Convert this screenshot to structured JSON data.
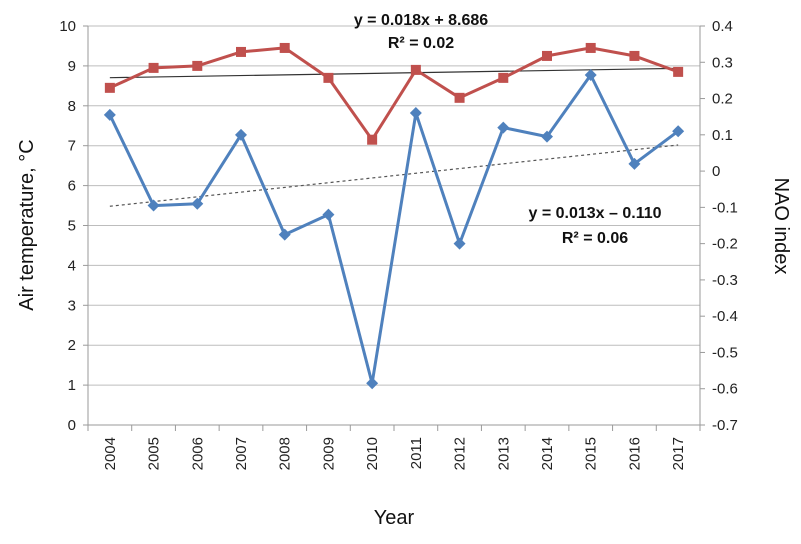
{
  "chart_data": {
    "type": "line",
    "categories": [
      "2004",
      "2005",
      "2006",
      "2007",
      "2008",
      "2009",
      "2010",
      "2011",
      "2012",
      "2013",
      "2014",
      "2015",
      "2016",
      "2017"
    ],
    "series": [
      {
        "name": "Air temperature",
        "axis": "left",
        "color": "#c0504d",
        "marker": "square",
        "values": [
          8.45,
          8.95,
          9.0,
          9.35,
          9.45,
          8.7,
          7.15,
          8.9,
          8.2,
          8.7,
          9.25,
          9.45,
          9.25,
          8.85
        ]
      },
      {
        "name": "NAO index",
        "axis": "right",
        "color": "#4f81bd",
        "marker": "diamond",
        "values": [
          0.155,
          -0.095,
          -0.09,
          0.1,
          -0.175,
          -0.12,
          -0.585,
          0.16,
          -0.2,
          0.12,
          0.095,
          0.265,
          0.02,
          0.11
        ]
      }
    ],
    "trendlines": [
      {
        "series": "Air temperature",
        "axis": "left",
        "style": "solid",
        "color": "#333333",
        "start_value": 8.704,
        "end_value": 8.938,
        "equation": "y = 0.018x + 8.686",
        "r2": "R² = 0.02"
      },
      {
        "series": "NAO index",
        "axis": "right",
        "style": "dashed",
        "color": "#555555",
        "start_value": -0.097,
        "end_value": 0.072,
        "equation": "y = 0.013x – 0.110",
        "r2": "R² = 0.06"
      }
    ],
    "xlabel": "Year",
    "ylabel_left": "Air temperature, °C",
    "ylabel_right": "NAO index",
    "ylim_left": [
      0,
      10
    ],
    "ylim_right": [
      -0.7,
      0.4
    ],
    "yticks_left": [
      "0",
      "1",
      "2",
      "3",
      "4",
      "5",
      "6",
      "7",
      "8",
      "9",
      "10"
    ],
    "yticks_right": [
      "-0.7",
      "-0.6",
      "-0.5",
      "-0.4",
      "-0.3",
      "-0.2",
      "-0.1",
      "0",
      "0.1",
      "0.2",
      "0.3",
      "0.4"
    ],
    "grid": true
  }
}
